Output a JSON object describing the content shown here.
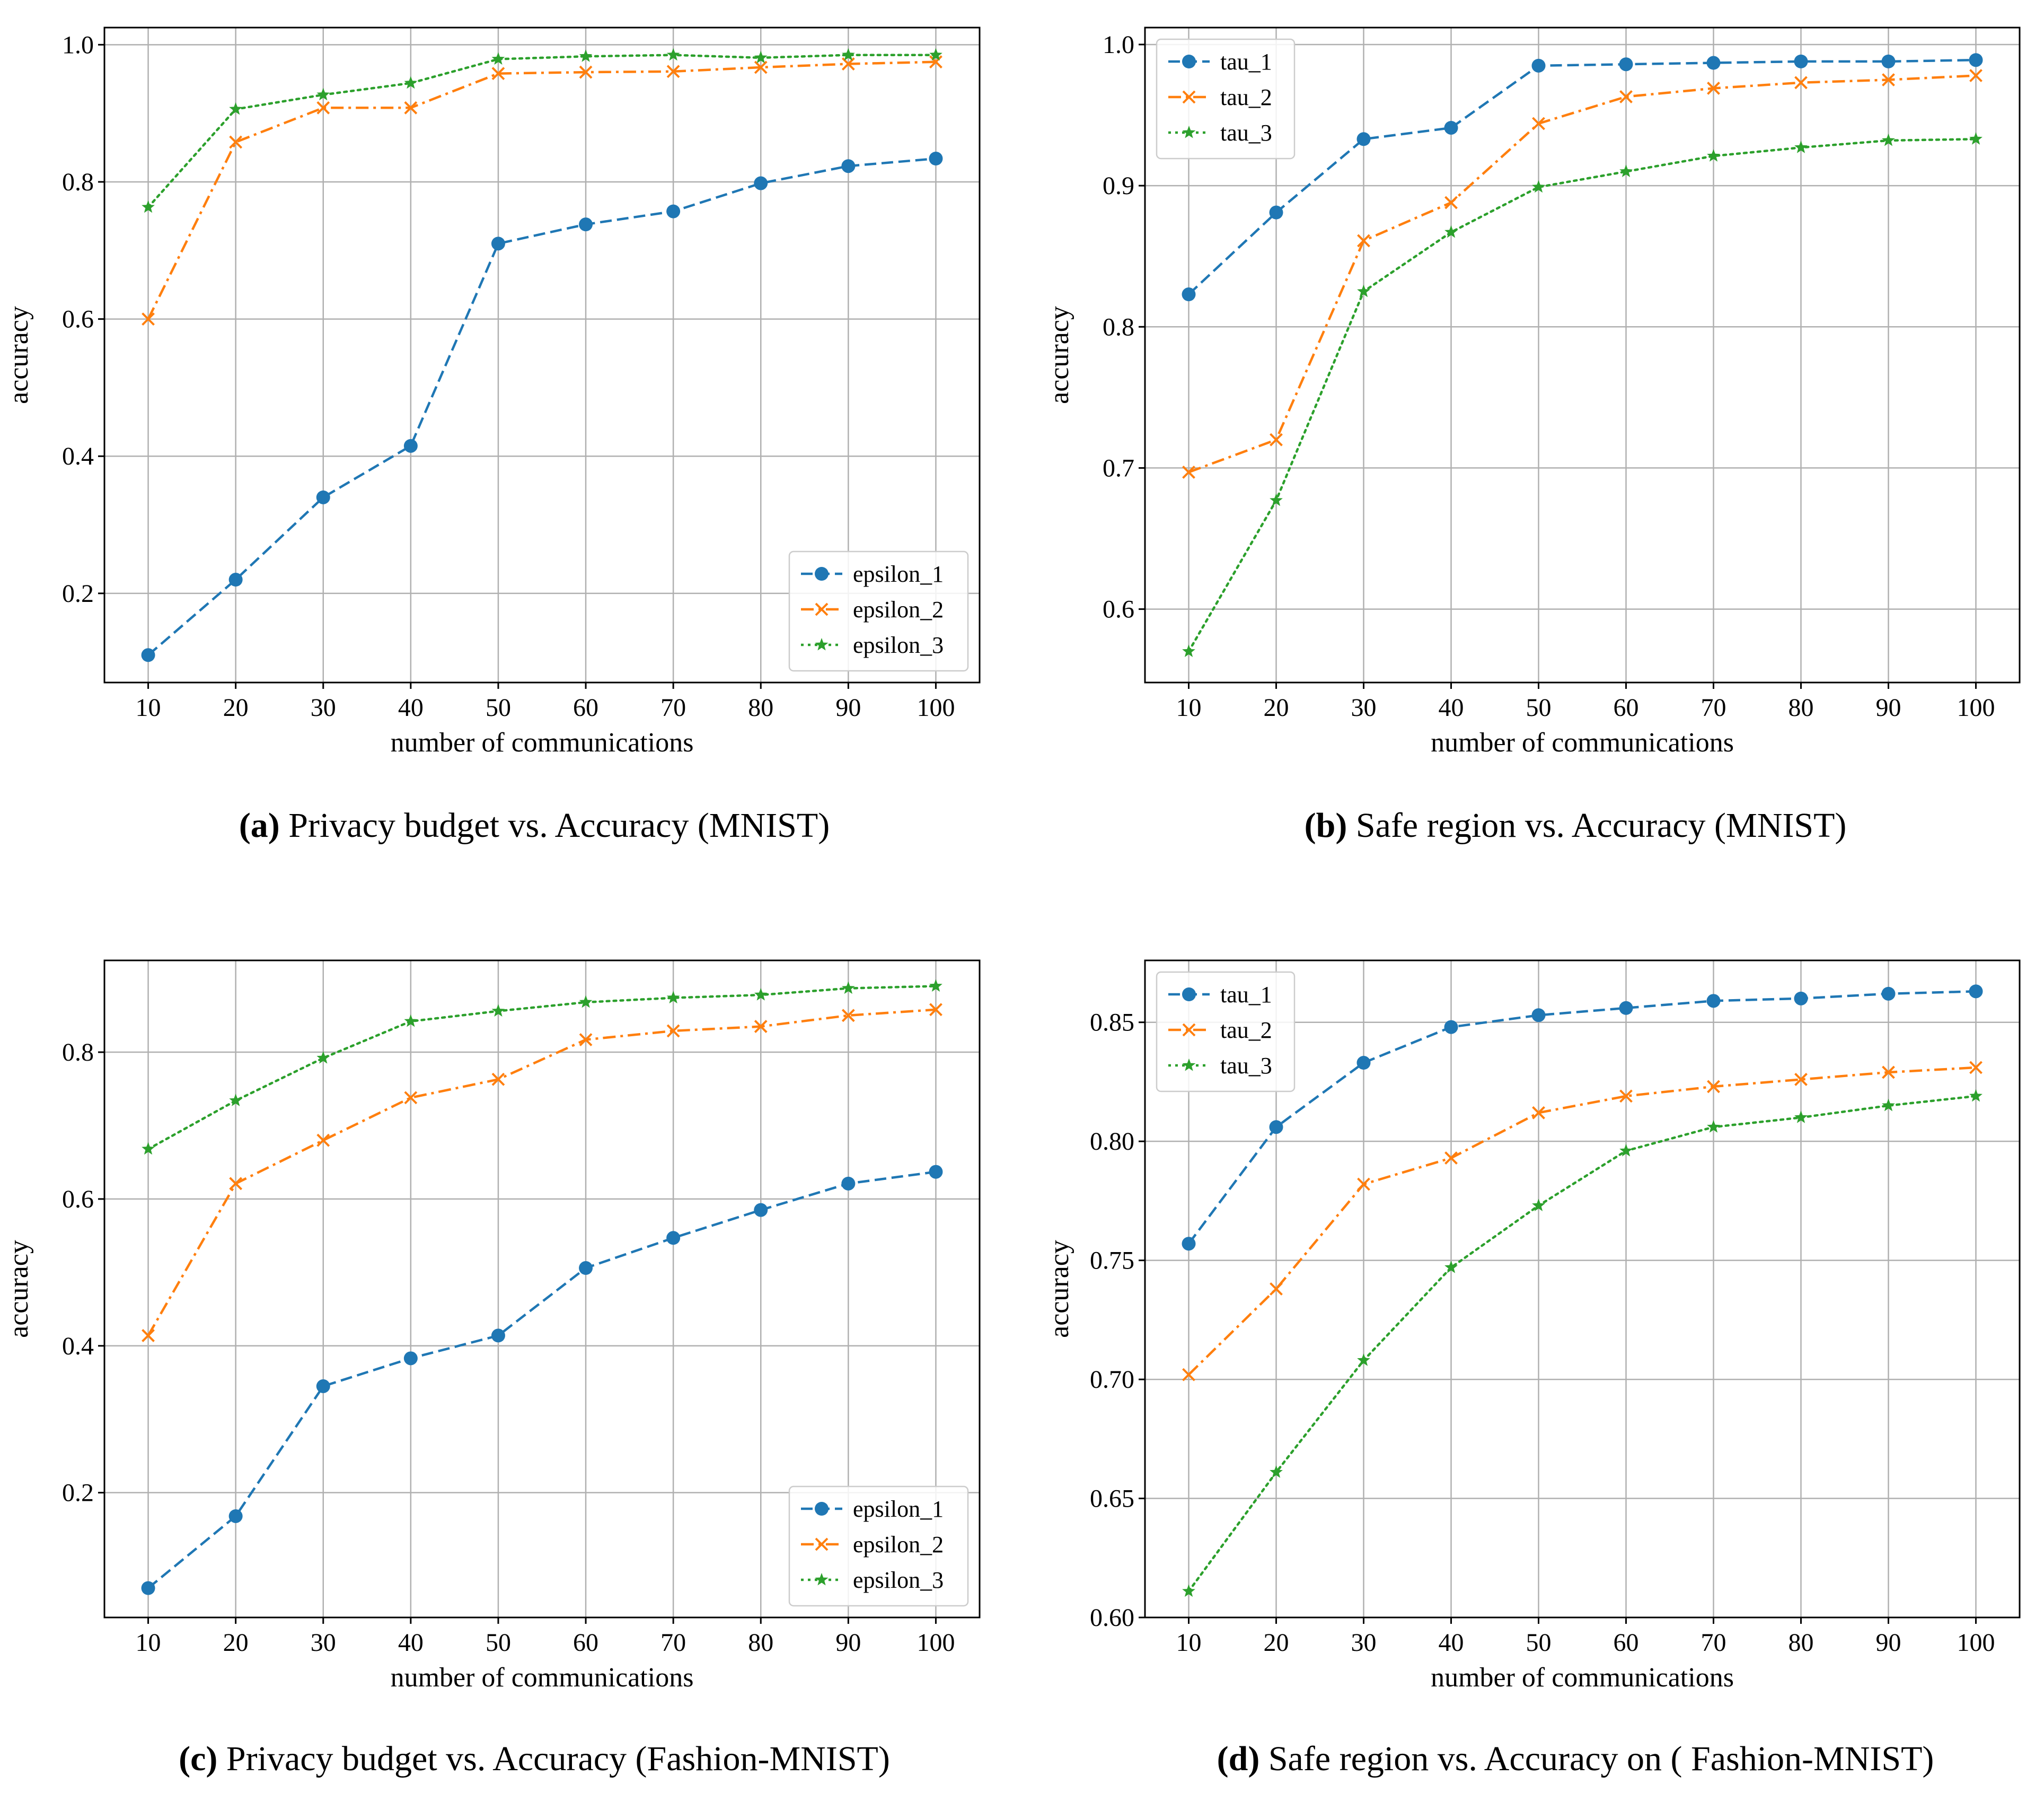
{
  "colors": {
    "series_blue": "#1f77b4",
    "series_orange": "#ff7f0e",
    "series_green": "#2ca02c",
    "grid": "#b0b0b0",
    "axes": "#000000",
    "text": "#000000",
    "legend_border": "#cccccc"
  },
  "chart_data": [
    {
      "id": "a",
      "type": "line",
      "caption_letter": "(a)",
      "caption_text": " Privacy budget vs. Accuracy (MNIST)",
      "xlabel": "number of communications",
      "ylabel": "accuracy",
      "x": [
        10,
        20,
        30,
        40,
        50,
        60,
        70,
        80,
        90,
        100
      ],
      "xticks": [
        10,
        20,
        30,
        40,
        50,
        60,
        70,
        80,
        90,
        100
      ],
      "xlim": [
        5,
        105
      ],
      "ylim": [
        0.07,
        1.025
      ],
      "yticks": [
        0.2,
        0.4,
        0.6,
        0.8,
        1.0
      ],
      "ytick_decimals": 1,
      "grid": true,
      "legend_position": "lower-right",
      "series": [
        {
          "name": "epsilon_1",
          "color_key": "series_blue",
          "marker": "circle",
          "linestyle": "dashed",
          "values": [
            0.11,
            0.22,
            0.34,
            0.415,
            0.71,
            0.738,
            0.757,
            0.798,
            0.823,
            0.834
          ]
        },
        {
          "name": "epsilon_2",
          "color_key": "series_orange",
          "marker": "x",
          "linestyle": "dashdot",
          "values": [
            0.6,
            0.858,
            0.908,
            0.908,
            0.958,
            0.96,
            0.961,
            0.967,
            0.972,
            0.975
          ]
        },
        {
          "name": "epsilon_3",
          "color_key": "series_green",
          "marker": "star",
          "linestyle": "dotted",
          "values": [
            0.763,
            0.906,
            0.927,
            0.944,
            0.979,
            0.983,
            0.985,
            0.981,
            0.985,
            0.985
          ]
        }
      ]
    },
    {
      "id": "b",
      "type": "line",
      "caption_letter": "(b)",
      "caption_text": " Safe region vs. Accuracy (MNIST)",
      "xlabel": "number of communications",
      "ylabel": "accuracy",
      "x": [
        10,
        20,
        30,
        40,
        50,
        60,
        70,
        80,
        90,
        100
      ],
      "xticks": [
        10,
        20,
        30,
        40,
        50,
        60,
        70,
        80,
        90,
        100
      ],
      "xlim": [
        5,
        105
      ],
      "ylim": [
        0.548,
        1.012
      ],
      "yticks": [
        0.6,
        0.7,
        0.8,
        0.9,
        1.0
      ],
      "ytick_decimals": 1,
      "grid": true,
      "legend_position": "upper-left",
      "series": [
        {
          "name": "tau_1",
          "color_key": "series_blue",
          "marker": "circle",
          "linestyle": "dashed",
          "values": [
            0.823,
            0.881,
            0.933,
            0.941,
            0.985,
            0.986,
            0.987,
            0.988,
            0.988,
            0.989
          ]
        },
        {
          "name": "tau_2",
          "color_key": "series_orange",
          "marker": "x",
          "linestyle": "dashdot",
          "values": [
            0.697,
            0.72,
            0.861,
            0.888,
            0.944,
            0.963,
            0.969,
            0.973,
            0.975,
            0.978
          ]
        },
        {
          "name": "tau_3",
          "color_key": "series_green",
          "marker": "star",
          "linestyle": "dotted",
          "values": [
            0.57,
            0.677,
            0.825,
            0.867,
            0.899,
            0.91,
            0.921,
            0.927,
            0.932,
            0.933
          ]
        }
      ]
    },
    {
      "id": "c",
      "type": "line",
      "caption_letter": "(c)",
      "caption_text": " Privacy budget vs. Accuracy (Fashion-MNIST)",
      "xlabel": "number of communications",
      "ylabel": "accuracy",
      "x": [
        10,
        20,
        30,
        40,
        50,
        60,
        70,
        80,
        90,
        100
      ],
      "xticks": [
        10,
        20,
        30,
        40,
        50,
        60,
        70,
        80,
        90,
        100
      ],
      "xlim": [
        5,
        105
      ],
      "ylim": [
        0.03,
        0.925
      ],
      "yticks": [
        0.2,
        0.4,
        0.6,
        0.8
      ],
      "ytick_decimals": 1,
      "grid": true,
      "legend_position": "lower-right",
      "series": [
        {
          "name": "epsilon_1",
          "color_key": "series_blue",
          "marker": "circle",
          "linestyle": "dashed",
          "values": [
            0.07,
            0.168,
            0.345,
            0.383,
            0.414,
            0.506,
            0.547,
            0.585,
            0.621,
            0.637
          ]
        },
        {
          "name": "epsilon_2",
          "color_key": "series_orange",
          "marker": "x",
          "linestyle": "dashdot",
          "values": [
            0.414,
            0.621,
            0.68,
            0.738,
            0.763,
            0.817,
            0.829,
            0.835,
            0.85,
            0.858
          ]
        },
        {
          "name": "epsilon_3",
          "color_key": "series_green",
          "marker": "star",
          "linestyle": "dotted",
          "values": [
            0.668,
            0.734,
            0.792,
            0.842,
            0.856,
            0.868,
            0.874,
            0.878,
            0.887,
            0.89
          ]
        }
      ]
    },
    {
      "id": "d",
      "type": "line",
      "caption_letter": "(d)",
      "caption_text": " Safe region vs. Accuracy on ( Fashion-MNIST)",
      "xlabel": "number of communications",
      "ylabel": "accuracy",
      "x": [
        10,
        20,
        30,
        40,
        50,
        60,
        70,
        80,
        90,
        100
      ],
      "xticks": [
        10,
        20,
        30,
        40,
        50,
        60,
        70,
        80,
        90,
        100
      ],
      "xlim": [
        5,
        105
      ],
      "ylim": [
        0.6,
        0.876
      ],
      "yticks": [
        0.6,
        0.65,
        0.7,
        0.75,
        0.8,
        0.85
      ],
      "ytick_decimals": 2,
      "grid": true,
      "legend_position": "upper-left",
      "series": [
        {
          "name": "tau_1",
          "color_key": "series_blue",
          "marker": "circle",
          "linestyle": "dashed",
          "values": [
            0.757,
            0.806,
            0.833,
            0.848,
            0.853,
            0.856,
            0.859,
            0.86,
            0.862,
            0.863
          ]
        },
        {
          "name": "tau_2",
          "color_key": "series_orange",
          "marker": "x",
          "linestyle": "dashdot",
          "values": [
            0.702,
            0.738,
            0.782,
            0.793,
            0.812,
            0.819,
            0.823,
            0.826,
            0.829,
            0.831
          ]
        },
        {
          "name": "tau_3",
          "color_key": "series_green",
          "marker": "star",
          "linestyle": "dotted",
          "values": [
            0.611,
            0.661,
            0.708,
            0.747,
            0.773,
            0.796,
            0.806,
            0.81,
            0.815,
            0.819
          ]
        }
      ]
    }
  ]
}
